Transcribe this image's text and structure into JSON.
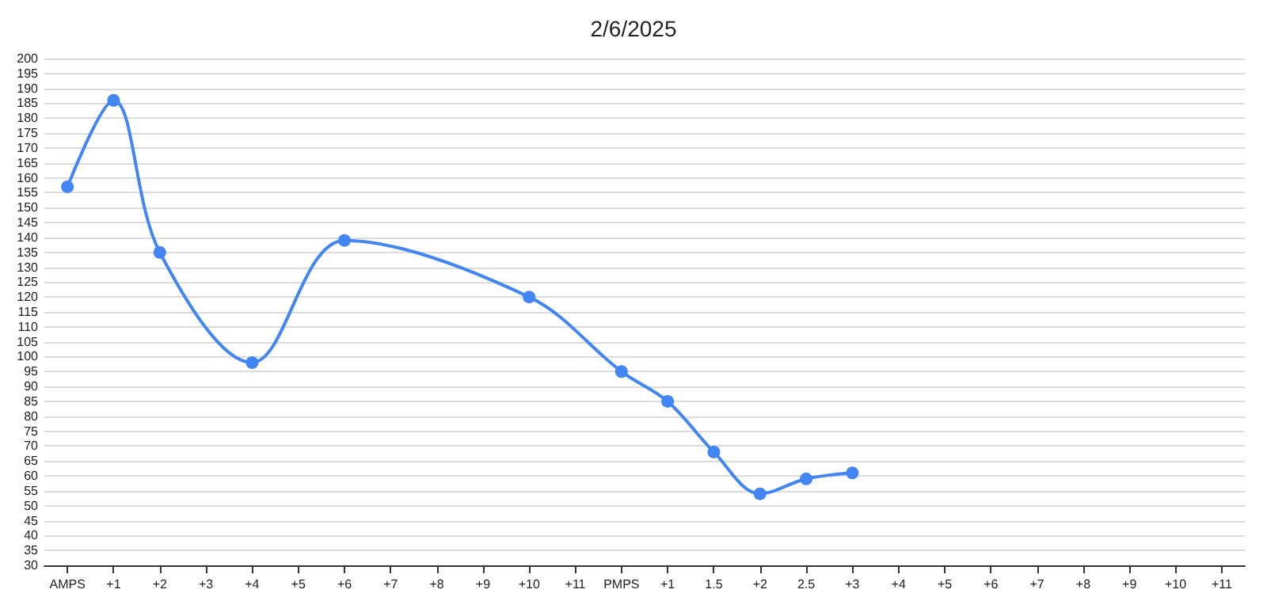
{
  "chart_data": {
    "type": "line",
    "title": "2/6/2025",
    "categories": [
      "AMPS",
      "+1",
      "+2",
      "+3",
      "+4",
      "+5",
      "+6",
      "+7",
      "+8",
      "+9",
      "+10",
      "+11",
      "PMPS",
      "+1",
      "1.5",
      "+2",
      "2.5",
      "+3",
      "+4",
      "+5",
      "+6",
      "+7",
      "+8",
      "+9",
      "+10",
      "+11"
    ],
    "series": [
      {
        "color": "#4285f4",
        "values": [
          157,
          186,
          135,
          null,
          98,
          null,
          139,
          null,
          null,
          null,
          120,
          null,
          95,
          85,
          68,
          54,
          59,
          61,
          null,
          null,
          null,
          null,
          null,
          null,
          null,
          null
        ]
      }
    ],
    "ylim": [
      30,
      200
    ],
    "yticks": [
      30,
      35,
      40,
      45,
      50,
      55,
      60,
      65,
      70,
      75,
      80,
      85,
      90,
      95,
      100,
      105,
      110,
      115,
      120,
      125,
      130,
      135,
      140,
      145,
      150,
      155,
      160,
      165,
      170,
      175,
      180,
      185,
      190,
      195,
      200
    ],
    "grid": "y",
    "marker": "circle",
    "line_style": "solid"
  }
}
